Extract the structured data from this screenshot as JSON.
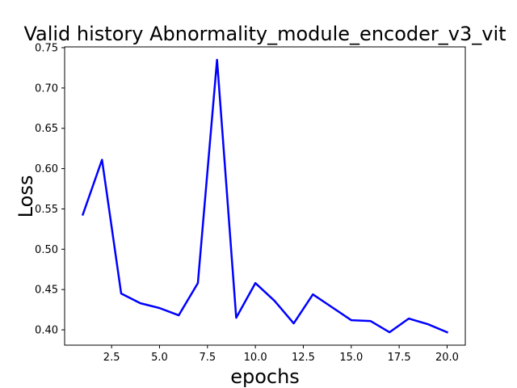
{
  "chart_data": {
    "type": "line",
    "title": "Valid history Abnormality_module_encoder_v3_vit",
    "xlabel": "epochs",
    "ylabel": "Loss",
    "xlim": [
      0.05,
      20.95
    ],
    "ylim": [
      0.381,
      0.751
    ],
    "xticks": [
      2.5,
      5.0,
      7.5,
      10.0,
      12.5,
      15.0,
      17.5,
      20.0
    ],
    "xtick_labels": [
      "2.5",
      "5.0",
      "7.5",
      "10.0",
      "12.5",
      "15.0",
      "17.5",
      "20.0"
    ],
    "yticks": [
      0.4,
      0.45,
      0.5,
      0.55,
      0.6,
      0.65,
      0.7,
      0.75
    ],
    "ytick_labels": [
      "0.40",
      "0.45",
      "0.50",
      "0.55",
      "0.60",
      "0.65",
      "0.70",
      "0.75"
    ],
    "grid": false,
    "legend": false,
    "series": [
      {
        "color": "#0000ff",
        "x": [
          1,
          2,
          3,
          4,
          5,
          6,
          7,
          8,
          9,
          10,
          11,
          12,
          13,
          14,
          15,
          16,
          17,
          18,
          19,
          20
        ],
        "y": [
          0.543,
          0.611,
          0.445,
          0.433,
          0.427,
          0.418,
          0.458,
          0.735,
          0.415,
          0.458,
          0.436,
          0.408,
          0.444,
          0.428,
          0.412,
          0.411,
          0.397,
          0.414,
          0.407,
          0.397
        ]
      }
    ]
  }
}
